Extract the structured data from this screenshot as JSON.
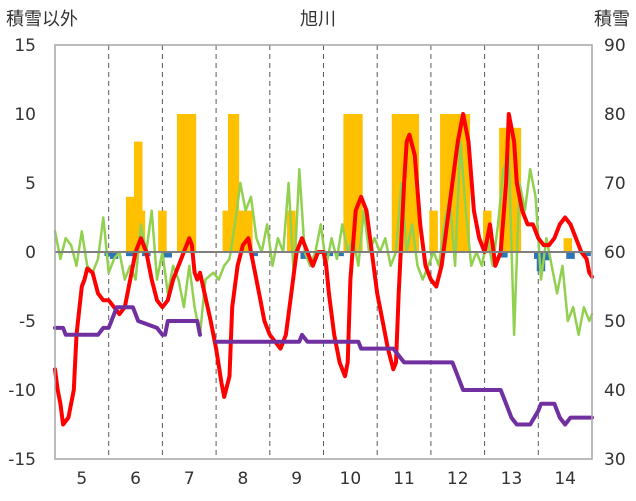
{
  "chart_data": {
    "type": "bar+line",
    "title": "旭川",
    "ylabel_left": "積雪以外",
    "ylabel_right": "積雪",
    "ylim_left": [
      -15,
      15
    ],
    "ylim_right": [
      30,
      90
    ],
    "yticks_left": [
      "15",
      "10",
      "5",
      "0",
      "-5",
      "-10",
      "-15"
    ],
    "yticks_right": [
      "90",
      "80",
      "70",
      "60",
      "50",
      "40",
      "30"
    ],
    "xlim": [
      4.5,
      14.5
    ],
    "xticks": [
      "5",
      "6",
      "7",
      "8",
      "9",
      "10",
      "11",
      "12",
      "13",
      "14"
    ],
    "grid": "dashed-vertical",
    "series": [
      {
        "axis": "left",
        "style": "bar",
        "color": "#ffc000",
        "points": [
          [
            5.9,
            4
          ],
          [
            6.05,
            8
          ],
          [
            6.1,
            3
          ],
          [
            6.5,
            3
          ],
          [
            6.85,
            10
          ],
          [
            6.95,
            10
          ],
          [
            7.05,
            10
          ],
          [
            7.7,
            3
          ],
          [
            7.8,
            10
          ],
          [
            7.85,
            10
          ],
          [
            7.95,
            3
          ],
          [
            8.1,
            3
          ],
          [
            8.9,
            3
          ],
          [
            9.95,
            10
          ],
          [
            10.05,
            10
          ],
          [
            10.15,
            10
          ],
          [
            10.85,
            10
          ],
          [
            10.95,
            10
          ],
          [
            11.05,
            10
          ],
          [
            11.2,
            10
          ],
          [
            11.55,
            3
          ],
          [
            11.75,
            10
          ],
          [
            11.85,
            10
          ],
          [
            11.95,
            10
          ],
          [
            12.05,
            10
          ],
          [
            12.15,
            10
          ],
          [
            12.55,
            3
          ],
          [
            12.85,
            9
          ],
          [
            12.95,
            9
          ],
          [
            13.1,
            9
          ],
          [
            14.05,
            1
          ]
        ]
      },
      {
        "axis": "left",
        "style": "bar",
        "color": "#2e75b6",
        "points": [
          [
            5.5,
            -0.3
          ],
          [
            5.6,
            -0.5
          ],
          [
            5.9,
            -0.3
          ],
          [
            6.2,
            -0.3
          ],
          [
            6.6,
            -0.4
          ],
          [
            8.2,
            -0.3
          ],
          [
            9.15,
            -0.5
          ],
          [
            9.6,
            -0.3
          ],
          [
            9.8,
            -0.3
          ],
          [
            12.85,
            -0.4
          ],
          [
            13.5,
            -0.5
          ],
          [
            13.55,
            -1.4
          ],
          [
            13.65,
            -0.6
          ],
          [
            14.1,
            -0.5
          ],
          [
            14.4,
            -0.3
          ]
        ]
      },
      {
        "axis": "left",
        "style": "line",
        "color": "#92d050",
        "points": [
          [
            4.5,
            1.5
          ],
          [
            4.6,
            -0.5
          ],
          [
            4.7,
            1
          ],
          [
            4.8,
            0.5
          ],
          [
            4.9,
            -1
          ],
          [
            5.0,
            1.5
          ],
          [
            5.1,
            -1
          ],
          [
            5.2,
            -1.5
          ],
          [
            5.3,
            -0.5
          ],
          [
            5.4,
            2.5
          ],
          [
            5.5,
            -1.5
          ],
          [
            5.6,
            -0.5
          ],
          [
            5.7,
            0
          ],
          [
            5.8,
            -2
          ],
          [
            5.9,
            -1
          ],
          [
            6.0,
            -2
          ],
          [
            6.1,
            2
          ],
          [
            6.2,
            0
          ],
          [
            6.3,
            3
          ],
          [
            6.4,
            -2
          ],
          [
            6.5,
            0
          ],
          [
            6.6,
            -3
          ],
          [
            6.7,
            -1
          ],
          [
            6.8,
            -2
          ],
          [
            6.9,
            -4
          ],
          [
            7.0,
            -1
          ],
          [
            7.1,
            -4
          ],
          [
            7.2,
            -6
          ],
          [
            7.3,
            -2
          ],
          [
            7.45,
            -1.5
          ],
          [
            7.55,
            -2
          ],
          [
            7.65,
            -1
          ],
          [
            7.75,
            -0.5
          ],
          [
            7.85,
            2
          ],
          [
            7.95,
            5
          ],
          [
            8.05,
            3
          ],
          [
            8.15,
            4
          ],
          [
            8.25,
            1
          ],
          [
            8.35,
            0
          ],
          [
            8.45,
            2
          ],
          [
            8.55,
            -1
          ],
          [
            8.65,
            1
          ],
          [
            8.75,
            0
          ],
          [
            8.85,
            5
          ],
          [
            8.95,
            -2
          ],
          [
            9.05,
            6
          ],
          [
            9.15,
            0
          ],
          [
            9.25,
            -1
          ],
          [
            9.35,
            0
          ],
          [
            9.45,
            2
          ],
          [
            9.55,
            -1
          ],
          [
            9.65,
            1
          ],
          [
            9.75,
            -0.5
          ],
          [
            9.85,
            2
          ],
          [
            9.95,
            0
          ],
          [
            10.05,
            1
          ],
          [
            10.15,
            -1
          ],
          [
            10.25,
            3
          ],
          [
            10.35,
            0
          ],
          [
            10.45,
            1
          ],
          [
            10.55,
            0
          ],
          [
            10.65,
            1
          ],
          [
            10.75,
            -1
          ],
          [
            10.85,
            0
          ],
          [
            10.95,
            5
          ],
          [
            11.05,
            0
          ],
          [
            11.15,
            2
          ],
          [
            11.25,
            -1
          ],
          [
            11.35,
            -2
          ],
          [
            11.45,
            -1
          ],
          [
            11.55,
            0
          ],
          [
            11.65,
            -1
          ],
          [
            11.75,
            2
          ],
          [
            11.85,
            4
          ],
          [
            11.95,
            -1
          ],
          [
            12.05,
            8
          ],
          [
            12.15,
            3
          ],
          [
            12.25,
            -1
          ],
          [
            12.35,
            0
          ],
          [
            12.45,
            -1
          ],
          [
            12.55,
            1
          ],
          [
            12.65,
            -1
          ],
          [
            12.75,
            2
          ],
          [
            12.85,
            6
          ],
          [
            12.95,
            7
          ],
          [
            13.05,
            -6
          ],
          [
            13.15,
            5
          ],
          [
            13.25,
            3
          ],
          [
            13.35,
            6
          ],
          [
            13.45,
            4
          ],
          [
            13.55,
            -2
          ],
          [
            13.65,
            1
          ],
          [
            13.75,
            -1
          ],
          [
            13.85,
            -3
          ],
          [
            13.95,
            -1
          ],
          [
            14.05,
            -5
          ],
          [
            14.15,
            -4
          ],
          [
            14.25,
            -6
          ],
          [
            14.35,
            -4
          ],
          [
            14.45,
            -5
          ],
          [
            14.5,
            -4.5
          ]
        ]
      },
      {
        "axis": "left",
        "style": "line",
        "color": "#ff0000",
        "points": [
          [
            4.5,
            -8.5
          ],
          [
            4.55,
            -10
          ],
          [
            4.6,
            -11
          ],
          [
            4.65,
            -12.5
          ],
          [
            4.75,
            -12
          ],
          [
            4.85,
            -10
          ],
          [
            4.9,
            -6
          ],
          [
            5.0,
            -2.5
          ],
          [
            5.05,
            -2
          ],
          [
            5.1,
            -1.2
          ],
          [
            5.2,
            -1.5
          ],
          [
            5.3,
            -3
          ],
          [
            5.4,
            -3.5
          ],
          [
            5.5,
            -3.5
          ],
          [
            5.6,
            -4
          ],
          [
            5.7,
            -4.5
          ],
          [
            5.8,
            -4
          ],
          [
            5.9,
            -2
          ],
          [
            6.0,
            0
          ],
          [
            6.1,
            1
          ],
          [
            6.2,
            0
          ],
          [
            6.3,
            -2
          ],
          [
            6.4,
            -3.5
          ],
          [
            6.5,
            -4
          ],
          [
            6.6,
            -3.5
          ],
          [
            6.7,
            -2
          ],
          [
            6.8,
            -1
          ],
          [
            6.9,
            0
          ],
          [
            7.0,
            1
          ],
          [
            7.05,
            0.5
          ],
          [
            7.1,
            -1.5
          ],
          [
            7.15,
            -2
          ],
          [
            7.2,
            -1.5
          ],
          [
            7.4,
            -5
          ],
          [
            7.5,
            -7
          ],
          [
            7.6,
            -9.5
          ],
          [
            7.65,
            -10.5
          ],
          [
            7.75,
            -9
          ],
          [
            7.8,
            -4
          ],
          [
            7.9,
            -1
          ],
          [
            8.0,
            0.5
          ],
          [
            8.1,
            1
          ],
          [
            8.2,
            -1
          ],
          [
            8.3,
            -3
          ],
          [
            8.4,
            -5
          ],
          [
            8.5,
            -6
          ],
          [
            8.6,
            -6.5
          ],
          [
            8.7,
            -7
          ],
          [
            8.8,
            -6
          ],
          [
            8.9,
            -3
          ],
          [
            9.0,
            0
          ],
          [
            9.1,
            1
          ],
          [
            9.2,
            0
          ],
          [
            9.3,
            -1
          ],
          [
            9.4,
            0
          ],
          [
            9.5,
            0
          ],
          [
            9.55,
            -1
          ],
          [
            9.6,
            -3
          ],
          [
            9.7,
            -6
          ],
          [
            9.8,
            -8
          ],
          [
            9.9,
            -9
          ],
          [
            9.95,
            -8
          ],
          [
            10.0,
            -2
          ],
          [
            10.1,
            3
          ],
          [
            10.2,
            4
          ],
          [
            10.3,
            3
          ],
          [
            10.4,
            0
          ],
          [
            10.5,
            -3
          ],
          [
            10.6,
            -5
          ],
          [
            10.7,
            -7
          ],
          [
            10.8,
            -8.5
          ],
          [
            10.85,
            -8
          ],
          [
            10.9,
            -3
          ],
          [
            11.0,
            5
          ],
          [
            11.05,
            8
          ],
          [
            11.1,
            8.5
          ],
          [
            11.2,
            7
          ],
          [
            11.3,
            2
          ],
          [
            11.4,
            -1
          ],
          [
            11.5,
            -2
          ],
          [
            11.6,
            -2.5
          ],
          [
            11.7,
            -1
          ],
          [
            11.8,
            2
          ],
          [
            11.9,
            5
          ],
          [
            12.0,
            8
          ],
          [
            12.1,
            10
          ],
          [
            12.2,
            8
          ],
          [
            12.3,
            3
          ],
          [
            12.4,
            1
          ],
          [
            12.5,
            0
          ],
          [
            12.6,
            2
          ],
          [
            12.7,
            -1
          ],
          [
            12.8,
            0
          ],
          [
            12.9,
            5
          ],
          [
            12.95,
            10
          ],
          [
            13.05,
            8
          ],
          [
            13.1,
            5
          ],
          [
            13.2,
            3
          ],
          [
            13.3,
            2
          ],
          [
            13.4,
            2
          ],
          [
            13.5,
            1
          ],
          [
            13.6,
            0.5
          ],
          [
            13.7,
            0.5
          ],
          [
            13.8,
            1
          ],
          [
            13.9,
            2
          ],
          [
            14.0,
            2.5
          ],
          [
            14.1,
            2
          ],
          [
            14.2,
            1
          ],
          [
            14.3,
            0
          ],
          [
            14.4,
            -0.5
          ],
          [
            14.45,
            -1.5
          ],
          [
            14.5,
            -1.8
          ]
        ]
      },
      {
        "axis": "right",
        "style": "line",
        "color": "#7030a0",
        "segments": [
          [
            [
              4.5,
              49
            ],
            [
              4.65,
              49
            ],
            [
              4.7,
              48
            ],
            [
              5.3,
              48
            ],
            [
              5.4,
              49
            ],
            [
              5.5,
              49
            ],
            [
              5.55,
              50
            ],
            [
              5.65,
              52
            ],
            [
              5.95,
              52
            ],
            [
              6.05,
              50
            ],
            [
              6.4,
              49
            ],
            [
              6.5,
              48
            ],
            [
              6.55,
              48
            ],
            [
              6.6,
              50
            ],
            [
              7.15,
              50
            ],
            [
              7.2,
              48
            ]
          ],
          [
            [
              7.5,
              47
            ],
            [
              9.05,
              47
            ],
            [
              9.1,
              48
            ],
            [
              9.2,
              47
            ],
            [
              10.15,
              47
            ],
            [
              10.2,
              46
            ],
            [
              10.8,
              46
            ],
            [
              10.9,
              45
            ],
            [
              11.0,
              44
            ],
            [
              11.9,
              44
            ],
            [
              12.0,
              42
            ],
            [
              12.1,
              40
            ],
            [
              12.8,
              40
            ],
            [
              12.9,
              38
            ],
            [
              13.0,
              36
            ],
            [
              13.1,
              35
            ],
            [
              13.35,
              35
            ],
            [
              13.5,
              37
            ],
            [
              13.55,
              38
            ],
            [
              13.8,
              38
            ],
            [
              13.9,
              36
            ],
            [
              14.0,
              35
            ],
            [
              14.1,
              36
            ],
            [
              14.5,
              36
            ]
          ]
        ]
      }
    ]
  }
}
